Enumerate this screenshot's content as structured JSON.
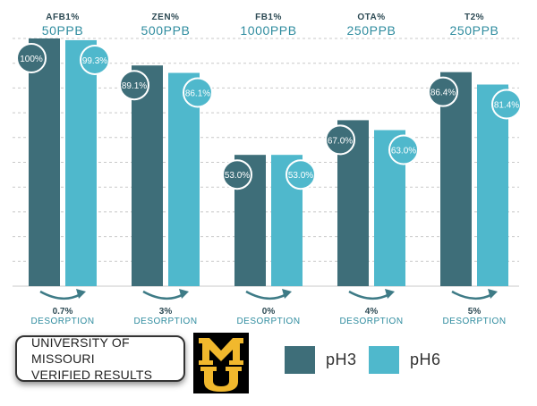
{
  "colors": {
    "ph3": "#3e6e79",
    "ph6": "#4fb8cc",
    "grid": "#c9c9c9",
    "label_teal": "#2f8c9f",
    "arrow": "#3e7b86"
  },
  "chart_data": {
    "type": "bar",
    "categories": [
      {
        "toxin": "AFB1%",
        "level": "50PPB",
        "desorption": "0.7%",
        "desorption_label": "DESORPTION"
      },
      {
        "toxin": "ZEN%",
        "level": "500PPB",
        "desorption": "3%",
        "desorption_label": "DESORPTION"
      },
      {
        "toxin": "FB1%",
        "level": "1000PPB",
        "desorption": "0%",
        "desorption_label": "DESORPTION"
      },
      {
        "toxin": "OTA%",
        "level": "250PPB",
        "desorption": "4%",
        "desorption_label": "DESORPTION"
      },
      {
        "toxin": "T2%",
        "level": "250PPB",
        "desorption": "5%",
        "desorption_label": "DESORPTION"
      }
    ],
    "series": [
      {
        "name": "pH3",
        "values": [
          100,
          89.1,
          53.0,
          67.0,
          86.4
        ],
        "labels": [
          "100%",
          "89.1%",
          "53.0%",
          "67.0%",
          "86.4%"
        ]
      },
      {
        "name": "pH6",
        "values": [
          99.3,
          86.1,
          53.0,
          63.0,
          81.4
        ],
        "labels": [
          "99.3%",
          "86.1%",
          "53.0%",
          "63.0%",
          "81.4%"
        ]
      }
    ],
    "ylim": [
      0,
      100
    ],
    "grid": true,
    "legend": "bottom-right"
  },
  "footer": {
    "verified_line1": "UNIVERSITY OF MISSOURI",
    "verified_line2": "VERIFIED RESULTS",
    "logo_alt": "MU"
  },
  "legend": {
    "ph3_label": "pH3",
    "ph6_label": "pH6"
  }
}
